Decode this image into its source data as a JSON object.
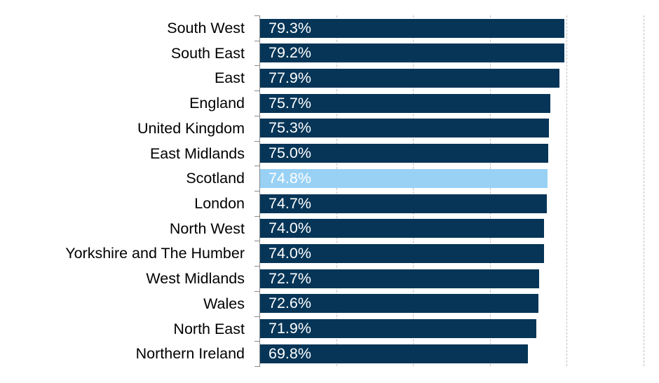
{
  "chart_data": {
    "type": "bar",
    "orientation": "horizontal",
    "title": "",
    "xlabel": "",
    "ylabel": "",
    "xlim": [
      0,
      100
    ],
    "x_gridlines": [
      20,
      40,
      60,
      80,
      100
    ],
    "grid": true,
    "tick_labels_shown": false,
    "categories": [
      "South West",
      "South East",
      "East",
      "England",
      "United Kingdom",
      "East Midlands",
      "Scotland",
      "London",
      "North West",
      "Yorkshire and The Humber",
      "West Midlands",
      "Wales",
      "North East",
      "Northern Ireland"
    ],
    "values": [
      79.3,
      79.2,
      77.9,
      75.7,
      75.3,
      75.0,
      74.8,
      74.7,
      74.0,
      74.0,
      72.7,
      72.6,
      71.9,
      69.8
    ],
    "data_labels": [
      "79.3%",
      "79.2%",
      "77.9%",
      "75.7%",
      "75.3%",
      "75.0%",
      "74.8%",
      "74.7%",
      "74.0%",
      "74.0%",
      "72.7%",
      "72.6%",
      "71.9%",
      "69.8%"
    ],
    "highlight": "Scotland",
    "colors": {
      "default": "#063557",
      "highlight": "#99d1f5",
      "grid": "#bfbfbf",
      "axis": "#888888"
    }
  }
}
